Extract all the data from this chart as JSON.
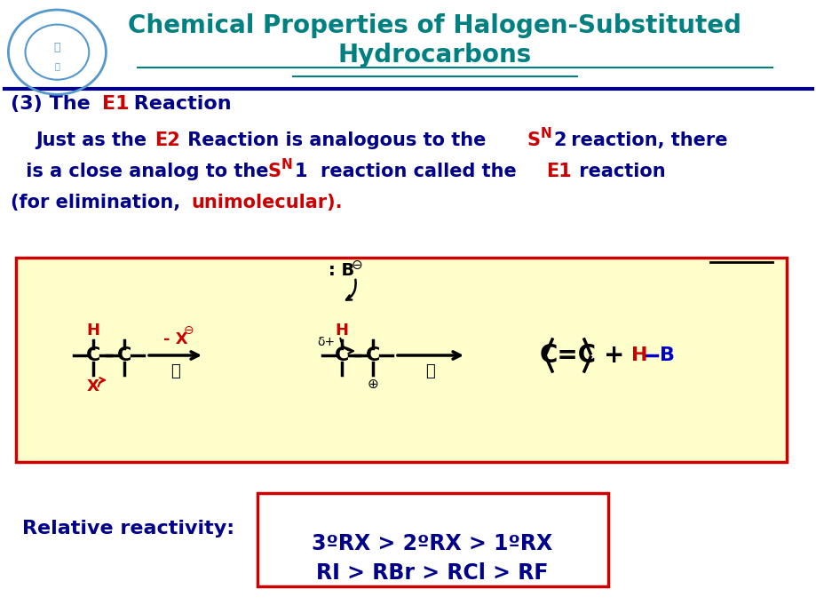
{
  "title_line1": "Chemical Properties of Halogen-Substituted",
  "title_line2": "Hydrocarbons",
  "title_color": "#008080",
  "bg_color": "#ffffff",
  "dark_blue": "#00008B",
  "red": "#CC0000",
  "blue": "#0000CC",
  "header_line_color": "#00008B",
  "reactivity_label": "Relative reactivity:",
  "box_line1": "3ºRX > 2ºRX > 1ºRX",
  "box_line2": "RI > RBr > RCl > RF",
  "box_border_color": "#CC0000",
  "figsize": [
    9.2,
    6.9
  ],
  "dpi": 100
}
